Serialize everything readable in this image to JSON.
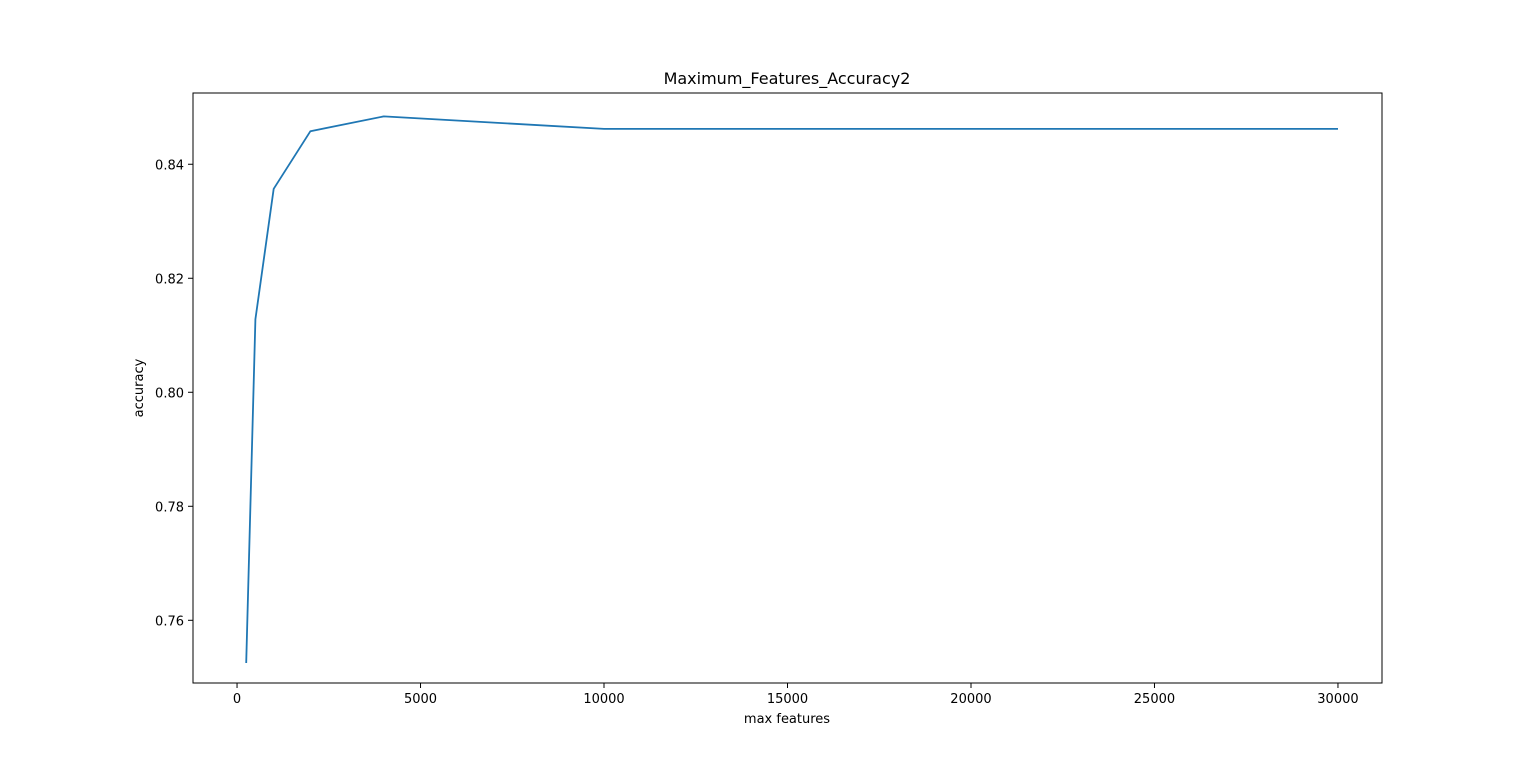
{
  "chart_data": {
    "type": "line",
    "title": "Maximum_Features_Accuracy2",
    "xlabel": "max features",
    "ylabel": "accuracy",
    "xlim": [
      -1200,
      31200
    ],
    "ylim": [
      0.749,
      0.8525
    ],
    "xticks": [
      0,
      5000,
      10000,
      15000,
      20000,
      25000,
      30000
    ],
    "xtick_labels": [
      "0",
      "5000",
      "10000",
      "15000",
      "20000",
      "25000",
      "30000"
    ],
    "yticks": [
      0.76,
      0.78,
      0.8,
      0.82,
      0.84
    ],
    "ytick_labels": [
      "0.76",
      "0.78",
      "0.80",
      "0.82",
      "0.84"
    ],
    "grid": false,
    "series": [
      {
        "color": "#1f77b4",
        "x": [
          250,
          500,
          1000,
          2000,
          4000,
          10000,
          30000
        ],
        "y": [
          0.7525,
          0.8128,
          0.8357,
          0.8458,
          0.8484,
          0.8462,
          0.8462
        ]
      }
    ]
  }
}
